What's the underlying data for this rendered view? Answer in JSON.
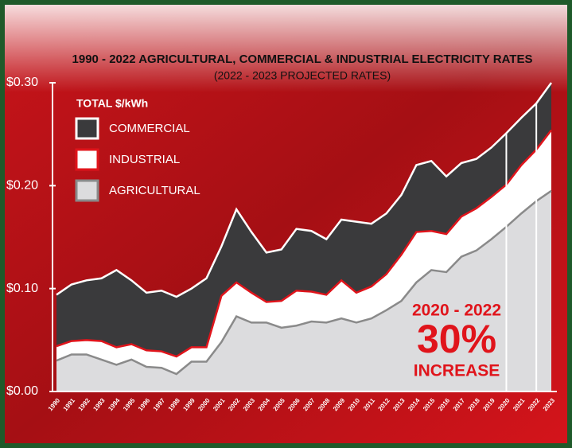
{
  "chart_data": {
    "type": "area",
    "title": "1990 - 2022 AGRICULTURAL, COMMERCIAL & INDUSTRIAL ELECTRICITY RATES",
    "subtitle": "(2022 - 2023 PROJECTED RATES)",
    "legend_title": "TOTAL $/kWh",
    "legend": "upper left",
    "annotation": [
      "2020 - 2022",
      "30%",
      "INCREASE"
    ],
    "categories": [
      "1990",
      "1991",
      "1992",
      "1993",
      "1994",
      "1995",
      "1996",
      "1997",
      "1998",
      "1999",
      "2000",
      "2001",
      "2002",
      "2003",
      "2004",
      "2005",
      "2006",
      "2007",
      "2008",
      "2009",
      "2010",
      "2011",
      "2012",
      "2013",
      "2014",
      "2015",
      "2016",
      "2017",
      "2018",
      "2019",
      "2020",
      "2021",
      "2022",
      "2023"
    ],
    "series": [
      {
        "name": "COMMERCIAL",
        "color": "#3a3a3c",
        "stroke": "#ffffff",
        "values": [
          0.094,
          0.104,
          0.108,
          0.11,
          0.118,
          0.108,
          0.096,
          0.098,
          0.092,
          0.1,
          0.11,
          0.141,
          0.177,
          0.155,
          0.135,
          0.138,
          0.158,
          0.156,
          0.148,
          0.167,
          0.165,
          0.163,
          0.173,
          0.191,
          0.22,
          0.224,
          0.209,
          0.222,
          0.226,
          0.237,
          0.251,
          0.266,
          0.28,
          0.3
        ]
      },
      {
        "name": "INDUSTRIAL",
        "color": "#ffffff",
        "stroke": "#e0141b",
        "values": [
          0.044,
          0.049,
          0.05,
          0.049,
          0.043,
          0.046,
          0.04,
          0.039,
          0.034,
          0.043,
          0.043,
          0.093,
          0.106,
          0.096,
          0.087,
          0.088,
          0.098,
          0.097,
          0.094,
          0.108,
          0.096,
          0.102,
          0.114,
          0.133,
          0.155,
          0.156,
          0.153,
          0.17,
          0.178,
          0.189,
          0.201,
          0.22,
          0.235,
          0.254
        ]
      },
      {
        "name": "AGRICULTURAL",
        "color": "#dcdcde",
        "stroke": "#8a8a8a",
        "values": [
          0.03,
          0.036,
          0.036,
          0.031,
          0.026,
          0.031,
          0.024,
          0.023,
          0.017,
          0.029,
          0.029,
          0.048,
          0.073,
          0.067,
          0.067,
          0.062,
          0.064,
          0.068,
          0.067,
          0.071,
          0.067,
          0.071,
          0.079,
          0.088,
          0.106,
          0.118,
          0.116,
          0.131,
          0.137,
          0.148,
          0.16,
          0.173,
          0.185,
          0.195
        ]
      }
    ],
    "ylim": [
      0,
      0.3
    ],
    "yticks": [
      {
        "value": 0,
        "label": "$0.00"
      },
      {
        "value": 0.1,
        "label": "$0.10"
      },
      {
        "value": 0.2,
        "label": "$0.20"
      },
      {
        "value": 0.3,
        "label": "$0.30"
      }
    ]
  }
}
